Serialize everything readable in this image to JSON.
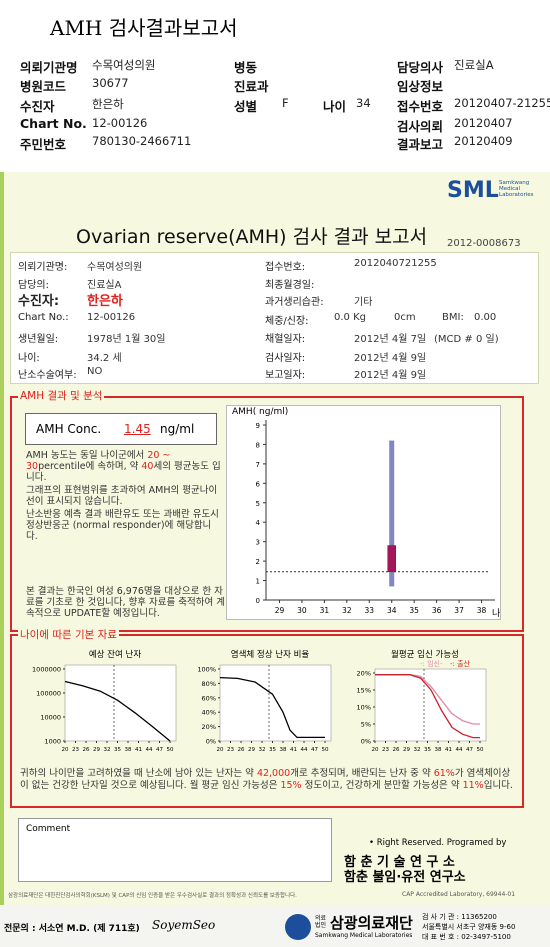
{
  "header": {
    "title": "AMH 검사결과보고서",
    "rows": [
      [
        "의뢰기관명",
        "수목여성의원",
        "병동",
        "담당의사",
        "진료실A"
      ],
      [
        "병원코드",
        "30677",
        "진료과",
        "임상정보"
      ],
      [
        "수진자",
        "한은하",
        "성별",
        "F",
        "나이",
        "34",
        "접수번호",
        "20120407-21255"
      ],
      [
        "Chart No.",
        "12-00126",
        "검사의뢰",
        "20120407"
      ],
      [
        "주민번호",
        "780130-2466711",
        "결과보고",
        "20120409"
      ]
    ]
  },
  "report": {
    "logo": "SML",
    "logo_sub": [
      "Samkwang",
      "Medical",
      "Laboratories"
    ],
    "title": "Ovarian reserve(AMH) 검사 결과 보고서",
    "doc_no": "2012-0008673",
    "left": [
      [
        "의뢰기관명:",
        "수목여성의원"
      ],
      [
        "담당의:",
        "진료실A"
      ],
      [
        "수진자:",
        "한은하"
      ],
      [
        "Chart No.:",
        "12-00126"
      ],
      [
        "생년월일:",
        "1978년 1월 30일"
      ],
      [
        "나이:",
        "34.2 세"
      ],
      [
        "난소수술여부:",
        "NO"
      ]
    ],
    "right": [
      [
        "접수번호:",
        "2012040721255"
      ],
      [
        "최종월경일:"
      ],
      [
        "과거생리습관:",
        "기타"
      ],
      [
        "체중/신장:",
        "0.0 Kg",
        "0cm",
        "BMI:",
        "0.00"
      ],
      [
        "채혈일자:",
        "2012년 4월 7일",
        "(MCD # 0 일)"
      ],
      [
        "검사일자:",
        "2012년 4월 9일"
      ],
      [
        "보고일자:",
        "2012년 4월 9일"
      ]
    ]
  },
  "amh_result": {
    "section": "AMH 결과 및 분석",
    "label": "AMH Conc.",
    "value": "1.45",
    "unit": "ng/ml",
    "notes": [
      [
        "AMH 농도는 동일 나이군에서 ",
        "20 ~ 30",
        "percentile에 속하며, 약 ",
        "40",
        "세의 평균농도 입니다."
      ],
      [
        "그래프의 표현범위를 초과하여 AMH의 평균나이선이 표시되지 않습니다."
      ],
      [
        "난소반응 예측 결과 배란유도 또는 과배란 유도시 정상반응군 (normal responder)에 해당합니다."
      ],
      [
        "본 결과는 한국인 여성 6,976명을 대상으로 한 자료를 기초로 한 것입니다, 향후 자료를 축적하여 계속적으로 UPDATE할 예정입니다."
      ]
    ]
  },
  "basic": {
    "section": "나이에 따른 기본 자료",
    "summary": [
      "귀하의 나이만을 고려하였을 때 난소에 남아 있는 난자는 약 ",
      "42,000",
      "개로 추정되며, 배란되는 난자 중 약 ",
      "61%",
      "가 염색체이상이 없는 건강한 난자일 것으로 예상됩니다. 월 평균 임신 가능성은 ",
      "15%",
      " 정도이고, 건강하게 분만할 가능성은 약 ",
      "11%",
      "입니다."
    ]
  },
  "chart_data": [
    {
      "type": "range",
      "ylabel": "AMH( ng/ml)",
      "xlabel": "나이",
      "xlim": [
        28.4,
        38.6
      ],
      "xticks": [
        29,
        30,
        31,
        32,
        33,
        34,
        35,
        36,
        37,
        38
      ],
      "ylim": [
        0,
        9
      ],
      "yticks": [
        0,
        1,
        2,
        3,
        4,
        5,
        6,
        7,
        8,
        9
      ],
      "hline": 1.45,
      "ranges": [
        {
          "x": 34,
          "low": 0.7,
          "high": 8.2,
          "color": "#7f88c0"
        },
        {
          "x": 34,
          "low": 1.45,
          "high": 2.8,
          "color": "#a3165a"
        }
      ]
    },
    {
      "type": "line",
      "title": "예상 잔여 난자",
      "log": true,
      "xlim": [
        20,
        50
      ],
      "xticks": [
        20,
        23,
        26,
        29,
        32,
        35,
        38,
        41,
        44,
        47,
        50
      ],
      "ylim": [
        1000,
        1000000
      ],
      "yticks": [
        1000,
        10000,
        100000,
        1000000
      ],
      "vline": 34,
      "x": [
        20,
        25,
        30,
        35,
        40,
        45,
        50
      ],
      "series": [
        {
          "color": "#000000",
          "values": [
            300000,
            200000,
            120000,
            50000,
            15000,
            4000,
            1000
          ]
        }
      ]
    },
    {
      "type": "line",
      "title": "염색체 정상 난자 비율",
      "xlim": [
        20,
        50
      ],
      "xticks": [
        20,
        23,
        26,
        29,
        32,
        35,
        38,
        41,
        44,
        47,
        50
      ],
      "ylim": [
        0,
        100
      ],
      "yticks": [
        {
          "value": 0,
          "label": "0%"
        },
        {
          "value": 20,
          "label": "20%"
        },
        {
          "value": 40,
          "label": "40%"
        },
        {
          "value": 60,
          "label": "60%"
        },
        {
          "value": 80,
          "label": "80%"
        },
        {
          "value": 100,
          "label": "100%"
        }
      ],
      "vline": 34,
      "x": [
        20,
        25,
        30,
        35,
        38,
        40,
        42,
        45,
        50
      ],
      "series": [
        {
          "color": "#000000",
          "values": [
            88,
            87,
            82,
            65,
            40,
            15,
            5,
            5,
            5
          ]
        }
      ]
    },
    {
      "type": "line",
      "title": "월평균 임신 가능성",
      "xlim": [
        20,
        50
      ],
      "xticks": [
        20,
        23,
        26,
        29,
        32,
        35,
        38,
        41,
        44,
        47,
        50
      ],
      "ylim": [
        0,
        20
      ],
      "yticks": [
        {
          "value": 0,
          "label": "0%"
        },
        {
          "value": 5,
          "label": "5%"
        },
        {
          "value": 10,
          "label": "10%"
        },
        {
          "value": 15,
          "label": "15%"
        },
        {
          "value": 20,
          "label": "20%"
        }
      ],
      "vline": 34,
      "x": [
        20,
        25,
        30,
        33,
        36,
        39,
        42,
        45,
        48,
        50
      ],
      "series": [
        {
          "name": "-: 임신-",
          "color": "#e08aa8",
          "values": [
            19.5,
            19.5,
            19.5,
            19,
            16,
            12,
            8,
            6,
            5,
            5
          ]
        },
        {
          "name": "-: 출산",
          "color": "#d0202a",
          "values": [
            19.5,
            19.5,
            19.5,
            18.5,
            15,
            9,
            4,
            2,
            1,
            1
          ]
        }
      ]
    }
  ],
  "comment": {
    "label": "Comment"
  },
  "credit": [
    "• Right Reserved. Programed by",
    "함 춘 기 술 연 구 소",
    "함춘 불임·유전 연구소"
  ],
  "footer": {
    "notice": "삼광의료재단은 대한진단검사의학회(KSLM) 및 CAP의 신임 인증을 받은 우수검사실로 결과의 정확성과 신뢰도를 보증합니다.",
    "cap": "CAP  Accredited  Laboratory,  69944-01",
    "doctor": "전문의 : 서소연 M.D. (제 711호)",
    "signature": "SoyemSeo",
    "org_small": "의료법인",
    "org": "삼광의료재단",
    "org_en": "Samkwang Medical Laboratories",
    "contact": [
      "검 사 기 관 : 11365200",
      "서울특별시 서초구 양재동 9-60",
      "대 표 번 호 : 02-3497-5100"
    ]
  }
}
